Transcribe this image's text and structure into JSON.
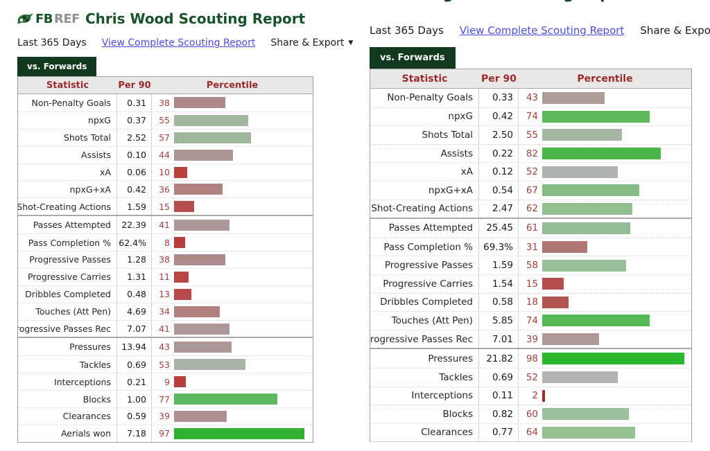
{
  "brand": {
    "fb": "FB",
    "ref": "REF",
    "icon": "fbref-bird-icon",
    "green": "#175229"
  },
  "colors": {
    "tab_bg": "#12381d",
    "header_text": "#9a2c2e",
    "link": "#4b4be0",
    "pct_number": "#a43f3f",
    "high_green": "#2cb82c",
    "low_red": "#b83c3a"
  },
  "left_report": {
    "title": "Chris Wood Scouting Report",
    "filter_label": "Last 365 Days",
    "link_label": "View Complete Scouting Report",
    "share_label": "Share & Export",
    "caret": "▼",
    "tab_label": "vs. Forwards",
    "columns": [
      "Statistic",
      "Per 90",
      "Percentile"
    ],
    "groups": [
      {
        "rows": [
          {
            "stat": "Non-Penalty Goals",
            "per90": "0.31",
            "pct": 38,
            "color": "#ad8a8a"
          },
          {
            "stat": "npxG",
            "per90": "0.37",
            "pct": 55,
            "color": "#a2b7a0"
          },
          {
            "stat": "Shots Total",
            "per90": "2.52",
            "pct": 57,
            "color": "#9db79b"
          },
          {
            "stat": "Assists",
            "per90": "0.10",
            "pct": 44,
            "color": "#ab9595"
          },
          {
            "stat": "xA",
            "per90": "0.06",
            "pct": 10,
            "color": "#b8403d"
          },
          {
            "stat": "npxG+xA",
            "per90": "0.42",
            "pct": 36,
            "color": "#b08382"
          },
          {
            "stat": "Shot-Creating Actions",
            "per90": "1.59",
            "pct": 15,
            "color": "#b44d4b"
          }
        ]
      },
      {
        "rows": [
          {
            "stat": "Passes Attempted",
            "per90": "22.39",
            "pct": 41,
            "color": "#ac9898"
          },
          {
            "stat": "Pass Completion %",
            "per90": "62.4%",
            "pct": 8,
            "color": "#b83c3a"
          },
          {
            "stat": "Progressive Passes",
            "per90": "1.28",
            "pct": 38,
            "color": "#ad8a8a"
          },
          {
            "stat": "Progressive Carries",
            "per90": "1.31",
            "pct": 11,
            "color": "#b74645"
          },
          {
            "stat": "Dribbles Completed",
            "per90": "0.48",
            "pct": 13,
            "color": "#b74a48"
          },
          {
            "stat": "Touches (Att Pen)",
            "per90": "4.69",
            "pct": 34,
            "color": "#b08080"
          },
          {
            "stat": "Progressive Passes Rec",
            "per90": "7.07",
            "pct": 41,
            "color": "#ac9898"
          }
        ]
      },
      {
        "rows": [
          {
            "stat": "Pressures",
            "per90": "13.94",
            "pct": 43,
            "color": "#ab9797"
          },
          {
            "stat": "Tackles",
            "per90": "0.69",
            "pct": 53,
            "color": "#a9b3a7"
          },
          {
            "stat": "Interceptions",
            "per90": "0.21",
            "pct": 9,
            "color": "#b63e3c"
          },
          {
            "stat": "Blocks",
            "per90": "1.00",
            "pct": 77,
            "color": "#5eb95e"
          },
          {
            "stat": "Clearances",
            "per90": "0.59",
            "pct": 39,
            "color": "#ae9090"
          },
          {
            "stat": "Aerials won",
            "per90": "7.18",
            "pct": 97,
            "color": "#2fb22f"
          }
        ]
      }
    ]
  },
  "right_report": {
    "clipped_title": "Wout Weghorst Scouting Report",
    "filter_label": "Last 365 Days",
    "link_label": "View Complete Scouting Report",
    "share_label": "Share & Export",
    "caret": "▼",
    "tab_label": "vs. Forwards",
    "columns": [
      "Statistic",
      "Per 90",
      "Percentile"
    ],
    "groups": [
      {
        "rows": [
          {
            "stat": "Non-Penalty Goals",
            "per90": "0.33",
            "pct": 43,
            "color": "#ae9c98"
          },
          {
            "stat": "npxG",
            "per90": "0.42",
            "pct": 74,
            "color": "#5cb95c"
          },
          {
            "stat": "Shots Total",
            "per90": "2.50",
            "pct": 55,
            "color": "#a6b5a4"
          },
          {
            "stat": "Assists",
            "per90": "0.22",
            "pct": 82,
            "color": "#48b748"
          },
          {
            "stat": "xA",
            "per90": "0.12",
            "pct": 52,
            "color": "#aeb2ae"
          },
          {
            "stat": "npxG+xA",
            "per90": "0.54",
            "pct": 67,
            "color": "#85bd85"
          },
          {
            "stat": "Shot-Creating Actions",
            "per90": "2.47",
            "pct": 62,
            "color": "#92bf92"
          }
        ]
      },
      {
        "rows": [
          {
            "stat": "Passes Attempted",
            "per90": "25.45",
            "pct": 61,
            "color": "#95bd95"
          },
          {
            "stat": "Pass Completion %",
            "per90": "69.3%",
            "pct": 31,
            "color": "#b17573"
          },
          {
            "stat": "Progressive Passes",
            "per90": "1.59",
            "pct": 58,
            "color": "#99bf99"
          },
          {
            "stat": "Progressive Carries",
            "per90": "1.54",
            "pct": 15,
            "color": "#b44d4b"
          },
          {
            "stat": "Dribbles Completed",
            "per90": "0.58",
            "pct": 18,
            "color": "#b25553"
          },
          {
            "stat": "Touches (Att Pen)",
            "per90": "5.85",
            "pct": 74,
            "color": "#57ba57"
          },
          {
            "stat": "Progressive Passes Rec",
            "per90": "7.01",
            "pct": 39,
            "color": "#ae9898"
          }
        ]
      },
      {
        "rows": [
          {
            "stat": "Pressures",
            "per90": "21.82",
            "pct": 98,
            "color": "#2cb82c"
          },
          {
            "stat": "Tackles",
            "per90": "0.69",
            "pct": 52,
            "color": "#b0b3b0"
          },
          {
            "stat": "Interceptions",
            "per90": "0.11",
            "pct": 2,
            "color": "#9e2d2d"
          },
          {
            "stat": "Blocks",
            "per90": "0.82",
            "pct": 60,
            "color": "#9cc09c"
          },
          {
            "stat": "Clearances",
            "per90": "0.77",
            "pct": 64,
            "color": "#93c193"
          }
        ]
      }
    ]
  }
}
